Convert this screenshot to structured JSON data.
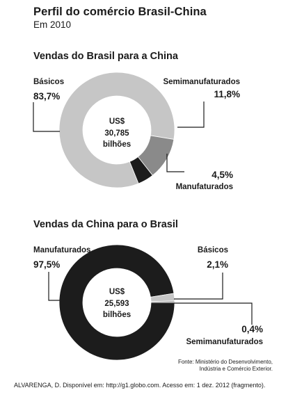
{
  "title": "Perfil do comércio Brasil-China",
  "subtitle": "Em 2010",
  "source_lines": [
    "Fonte: Ministério do Desenvolvimento,",
    "Indústria e Comércio Exterior."
  ],
  "credit": "ALVARENGA, D. Disponível em: http://g1.globo.com. Acesso em: 1 dez. 2012 (fragmento).",
  "chart_data": [
    {
      "type": "pie",
      "donut": true,
      "title": "Vendas do Brasil para a China",
      "center_text": [
        "US$",
        "30,785",
        "bilhões"
      ],
      "slices": [
        {
          "label": "Básicos",
          "value": 83.7,
          "value_text": "83,7%",
          "color": "#c6c6c6"
        },
        {
          "label": "Semimanufaturados",
          "value": 11.8,
          "value_text": "11,8%",
          "color": "#8a8a8a"
        },
        {
          "label": "Manufaturados",
          "value": 4.5,
          "value_text": "4,5%",
          "color": "#1c1c1c"
        }
      ]
    },
    {
      "type": "pie",
      "donut": true,
      "title": "Vendas da China para o Brasil",
      "center_text": [
        "US$",
        "25,593",
        "bilhões"
      ],
      "slices": [
        {
          "label": "Manufaturados",
          "value": 97.5,
          "value_text": "97,5%",
          "color": "#1c1c1c"
        },
        {
          "label": "Básicos",
          "value": 2.1,
          "value_text": "2,1%",
          "color": "#c6c6c6"
        },
        {
          "label": "Semimanufaturados",
          "value": 0.4,
          "value_text": "0,4%",
          "color": "#8a8a8a"
        }
      ]
    }
  ]
}
